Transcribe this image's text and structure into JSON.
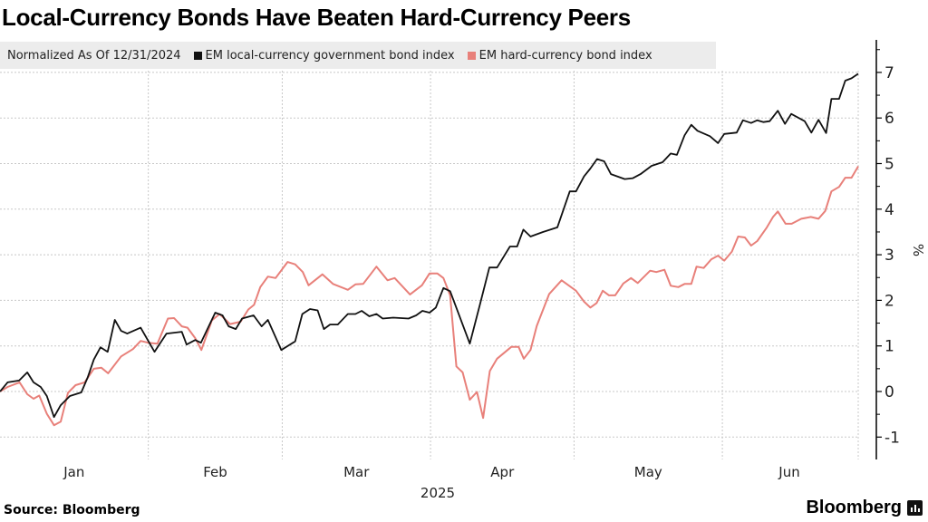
{
  "title": "Local-Currency Bonds Have Beaten Hard-Currency Peers",
  "source": "Source: Bloomberg",
  "logo_text": "Bloomberg",
  "colors": {
    "local": "#111111",
    "hard": "#e8807a",
    "grid": "#c8c8c8",
    "legend_bg": "#ececec"
  },
  "chart_data": {
    "type": "line",
    "title": "Local-Currency Bonds Have Beaten Hard-Currency Peers",
    "legend_title": "Normalized As Of 12/31/2024",
    "legend_placement": "top-left",
    "xlabel": "2025",
    "ylabel": "%",
    "x_unit": "days since 12/31/2024",
    "xlim": [
      0,
      179.4
    ],
    "ylim": [
      -1.5,
      7.7
    ],
    "yticks": [
      -1,
      0,
      1,
      2,
      3,
      4,
      5,
      6,
      7
    ],
    "month_labels": [
      {
        "label": "Jan",
        "center": 15.5
      },
      {
        "label": "Feb",
        "center": 45
      },
      {
        "label": "Mar",
        "center": 74.5
      },
      {
        "label": "Apr",
        "center": 105
      },
      {
        "label": "May",
        "center": 135.5
      },
      {
        "label": "Jun",
        "center": 165
      }
    ],
    "month_boundaries": [
      31,
      59,
      90,
      120,
      151,
      179.4
    ],
    "grid": true,
    "series": [
      {
        "name": "EM local-currency government bond index",
        "color": "#111111",
        "x": [
          0,
          1.6,
          4,
          5.7,
          7,
          8.5,
          9.8,
          11.3,
          12.7,
          14.6,
          17,
          18.3,
          19.6,
          21,
          22.5,
          24,
          25.3,
          26.6,
          29.4,
          32.3,
          34.8,
          38,
          39,
          40.8,
          42,
          45,
          46.5,
          47.8,
          49.3,
          50.6,
          53,
          54.7,
          56,
          58.8,
          61.7,
          63.2,
          64.8,
          66.4,
          67.7,
          69,
          70.6,
          72.7,
          74.3,
          75.6,
          77.2,
          78.7,
          80,
          82.2,
          85.4,
          87,
          88.3,
          89.8,
          91.1,
          92.7,
          94.1,
          98.2,
          100.3,
          102.3,
          103.9,
          106.6,
          108.1,
          109.4,
          110.9,
          113.5,
          116.5,
          119.1,
          120.4,
          122.1,
          123.4,
          124.8,
          126.3,
          127.7,
          130.6,
          132.3,
          133.9,
          136.2,
          138.5,
          140.2,
          141.5,
          143.1,
          144.5,
          145.8,
          148.4,
          150.1,
          151.4,
          154,
          155.3,
          157,
          158.3,
          159.6,
          160.9,
          162.6,
          164.1,
          165.4,
          168.2,
          169.6,
          171.1,
          172.7,
          173.8,
          175.4,
          176.7,
          178,
          179.4
        ],
        "y": [
          0,
          0.2,
          0.24,
          0.42,
          0.2,
          0.1,
          -0.1,
          -0.56,
          -0.3,
          -0.1,
          -0.02,
          0.3,
          0.7,
          0.97,
          0.87,
          1.57,
          1.33,
          1.27,
          1.4,
          0.87,
          1.27,
          1.31,
          1.03,
          1.13,
          1.07,
          1.73,
          1.67,
          1.43,
          1.37,
          1.6,
          1.67,
          1.43,
          1.57,
          0.91,
          1.1,
          1.7,
          1.81,
          1.78,
          1.37,
          1.47,
          1.47,
          1.7,
          1.7,
          1.77,
          1.65,
          1.7,
          1.6,
          1.62,
          1.6,
          1.67,
          1.77,
          1.73,
          1.84,
          2.27,
          2.2,
          1.05,
          1.9,
          2.72,
          2.72,
          3.18,
          3.18,
          3.55,
          3.4,
          3.5,
          3.6,
          4.39,
          4.39,
          4.72,
          4.89,
          5.1,
          5.05,
          4.77,
          4.66,
          4.68,
          4.77,
          4.95,
          5.03,
          5.22,
          5.19,
          5.62,
          5.85,
          5.72,
          5.6,
          5.45,
          5.65,
          5.68,
          5.95,
          5.89,
          5.95,
          5.91,
          5.93,
          6.16,
          5.87,
          6.09,
          5.93,
          5.68,
          5.96,
          5.67,
          6.42,
          6.42,
          6.82,
          6.87,
          6.97
        ]
      },
      {
        "name": "EM hard-currency bond index",
        "color": "#e8807a",
        "x": [
          0,
          1.6,
          4.1,
          5.7,
          7,
          8.2,
          9.8,
          11.3,
          12.7,
          14.2,
          15.8,
          17.7,
          19.6,
          21.2,
          22.6,
          25.3,
          27.8,
          29.4,
          31,
          32.9,
          35.1,
          36.4,
          38,
          39.2,
          40.8,
          42.1,
          44.3,
          45.9,
          48.1,
          50.3,
          51.9,
          53.1,
          54.4,
          56,
          57.6,
          60.1,
          61.7,
          63.3,
          64.5,
          67.4,
          69.6,
          72.7,
          74.3,
          75.9,
          78.7,
          81,
          82.5,
          85.7,
          88.2,
          89.8,
          91.4,
          92.7,
          94.1,
          95.4,
          96.7,
          98.2,
          99.7,
          101,
          102.4,
          103.9,
          106.9,
          108.4,
          109.5,
          110.9,
          112.2,
          114.8,
          117.4,
          120.4,
          122.1,
          123.4,
          124.7,
          126,
          127.3,
          128.6,
          130.3,
          131.9,
          133.3,
          135.9,
          137.2,
          138.9,
          140.2,
          141.8,
          143.1,
          144.5,
          145.6,
          147.1,
          148.7,
          150.1,
          151.4,
          153,
          154.3,
          155.7,
          157,
          158.3,
          160.3,
          161.6,
          162.6,
          164.2,
          165.5,
          167.5,
          169.5,
          171.1,
          172.5,
          173.8,
          175.4,
          176.7,
          178,
          179.4
        ],
        "y": [
          0,
          0.1,
          0.2,
          -0.06,
          -0.16,
          -0.09,
          -0.49,
          -0.74,
          -0.66,
          -0.03,
          0.14,
          0.2,
          0.5,
          0.52,
          0.4,
          0.77,
          0.93,
          1.11,
          1.07,
          1.05,
          1.6,
          1.61,
          1.43,
          1.4,
          1.17,
          0.91,
          1.56,
          1.7,
          1.48,
          1.53,
          1.8,
          1.9,
          2.29,
          2.52,
          2.49,
          2.84,
          2.79,
          2.62,
          2.33,
          2.57,
          2.36,
          2.23,
          2.35,
          2.36,
          2.74,
          2.44,
          2.49,
          2.13,
          2.33,
          2.59,
          2.59,
          2.49,
          2.11,
          0.55,
          0.42,
          -0.18,
          -0.01,
          -0.58,
          0.45,
          0.72,
          0.98,
          0.98,
          0.72,
          0.91,
          1.44,
          2.14,
          2.44,
          2.21,
          1.97,
          1.84,
          1.94,
          2.21,
          2.11,
          2.11,
          2.37,
          2.49,
          2.38,
          2.65,
          2.62,
          2.67,
          2.32,
          2.29,
          2.36,
          2.36,
          2.74,
          2.71,
          2.9,
          2.98,
          2.87,
          3.07,
          3.4,
          3.38,
          3.2,
          3.3,
          3.6,
          3.83,
          3.95,
          3.68,
          3.68,
          3.79,
          3.83,
          3.79,
          3.96,
          4.39,
          4.49,
          4.69,
          4.69,
          4.94
        ]
      }
    ]
  }
}
